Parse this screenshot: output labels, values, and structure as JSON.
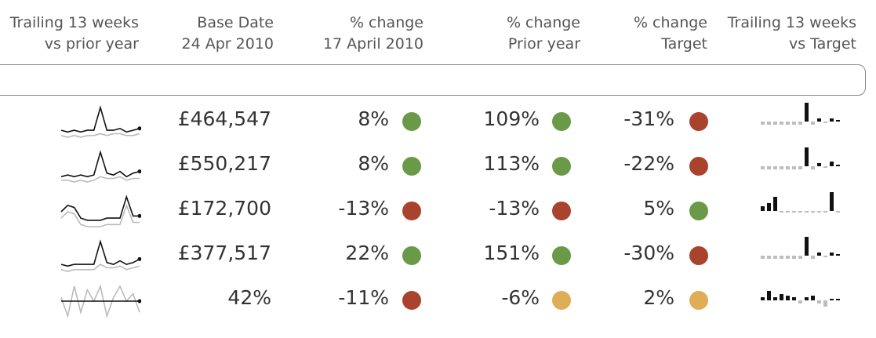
{
  "headers": [
    {
      "line1": "Trailing 13 weeks",
      "line2": "vs prior year"
    },
    {
      "line1": "Base Date",
      "line2": "24 Apr 2010"
    },
    {
      "line1": "% change",
      "line2": "17 April 2010"
    },
    {
      "line1": "% change",
      "line2": "Prior year"
    },
    {
      "line1": "% change",
      "line2": "Target"
    },
    {
      "line1": "Trailing 13 weeks",
      "line2": "vs Target"
    }
  ],
  "colors": {
    "green": "#6a9a48",
    "red": "#a9432e",
    "amber": "#e0ad57",
    "spark_current": "#111111",
    "spark_prior": "#bbbbbb",
    "bar_below": "#bdbdbd"
  },
  "rows": [
    {
      "base": "£464,547",
      "week": {
        "text": "8%",
        "status": "green"
      },
      "prior": {
        "text": "109%",
        "status": "green"
      },
      "target": {
        "text": "-31%",
        "status": "red"
      },
      "spark_current": [
        5,
        4,
        5,
        4,
        5,
        5,
        18,
        5,
        5,
        6,
        4,
        5,
        6
      ],
      "spark_prior": [
        2,
        1,
        2,
        1,
        2,
        2,
        3,
        2,
        3,
        3,
        2,
        2,
        3
      ],
      "target_bars": [
        -2,
        -2,
        -2,
        -2,
        -2,
        -2,
        -2,
        12,
        -2,
        2,
        -1,
        2,
        0
      ]
    },
    {
      "base": "£550,217",
      "week": {
        "text": "8%",
        "status": "green"
      },
      "prior": {
        "text": "113%",
        "status": "green"
      },
      "target": {
        "text": "-22%",
        "status": "red"
      },
      "spark_current": [
        4,
        5,
        4,
        5,
        4,
        5,
        18,
        6,
        5,
        7,
        4,
        6,
        7
      ],
      "spark_prior": [
        2,
        2,
        1,
        2,
        1,
        2,
        4,
        3,
        3,
        4,
        2,
        3,
        3
      ],
      "target_bars": [
        -2,
        -2,
        -2,
        -2,
        -2,
        -2,
        -2,
        12,
        -2,
        2,
        -1,
        3,
        0
      ]
    },
    {
      "base": "£172,700",
      "week": {
        "text": "-13%",
        "status": "red"
      },
      "prior": {
        "text": "-13%",
        "status": "red"
      },
      "target": {
        "text": "5%",
        "status": "green"
      },
      "spark_current": [
        9,
        12,
        11,
        6,
        5,
        5,
        5,
        6,
        6,
        6,
        16,
        7,
        7
      ],
      "spark_prior": [
        6,
        9,
        8,
        3,
        2,
        2,
        2,
        3,
        3,
        3,
        12,
        4,
        4
      ],
      "target_bars": [
        3,
        5,
        9,
        -1,
        -1,
        -1,
        -1,
        -1,
        -1,
        -1,
        -1,
        12,
        -1
      ]
    },
    {
      "base": "£377,517",
      "week": {
        "text": "22%",
        "status": "green"
      },
      "prior": {
        "text": "151%",
        "status": "green"
      },
      "target": {
        "text": "-30%",
        "status": "red"
      },
      "spark_current": [
        5,
        4,
        5,
        5,
        5,
        5,
        18,
        6,
        5,
        7,
        5,
        6,
        8
      ],
      "spark_prior": [
        2,
        1,
        2,
        2,
        2,
        2,
        5,
        3,
        3,
        4,
        2,
        3,
        4
      ],
      "target_bars": [
        -2,
        -2,
        -2,
        -2,
        -2,
        -2,
        -2,
        12,
        -2,
        2,
        -1,
        2,
        0
      ]
    },
    {
      "base": "42%",
      "week": {
        "text": "-11%",
        "status": "red"
      },
      "prior": {
        "text": "-6%",
        "status": "amber"
      },
      "target": {
        "text": "2%",
        "status": "amber"
      },
      "spark_current": [
        5,
        5,
        5,
        5,
        5,
        5,
        5,
        5,
        5,
        5,
        5,
        5,
        5
      ],
      "spark_prior": [
        6,
        1,
        9,
        2,
        8,
        5,
        9,
        1,
        6,
        9,
        5,
        7,
        2
      ],
      "target_bars": [
        2,
        6,
        2,
        4,
        3,
        2,
        -2,
        2,
        3,
        -2,
        -4,
        1,
        1
      ]
    }
  ]
}
